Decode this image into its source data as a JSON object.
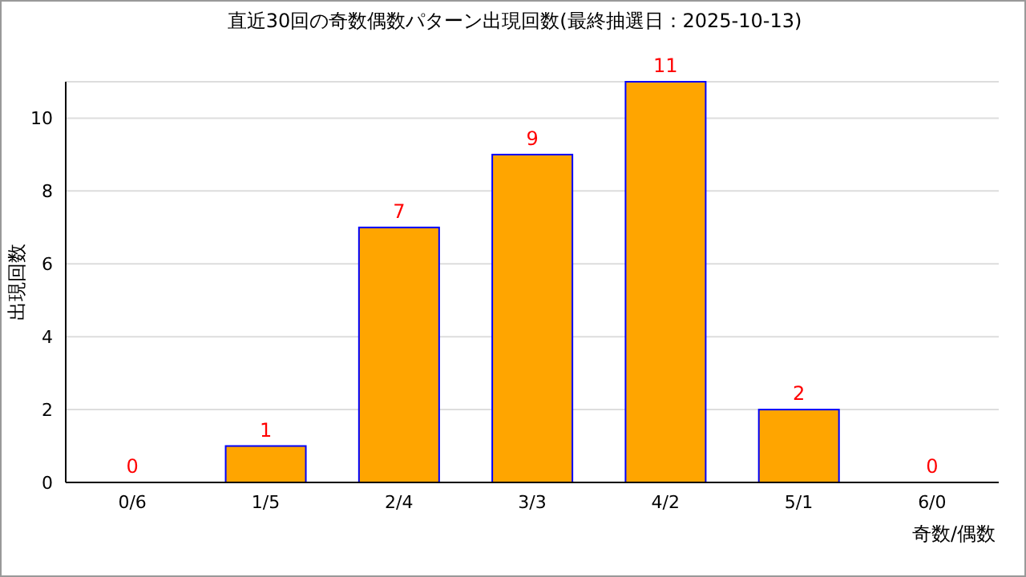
{
  "chart_data": {
    "type": "bar",
    "title": "直近30回の奇数偶数パターン出現回数(最終抽選日：2025-10-13)",
    "xlabel": "奇数/偶数",
    "ylabel": "出現回数",
    "categories": [
      "0/6",
      "1/5",
      "2/4",
      "3/3",
      "4/2",
      "5/1",
      "6/0"
    ],
    "series": [
      {
        "color": "#ffa500",
        "values": [
          0,
          1,
          7,
          9,
          11,
          2,
          0
        ]
      }
    ],
    "ylim": [
      0,
      11
    ],
    "yticks": [
      0,
      2,
      4,
      6,
      8,
      10
    ],
    "grid": "y",
    "data_labels": true
  }
}
